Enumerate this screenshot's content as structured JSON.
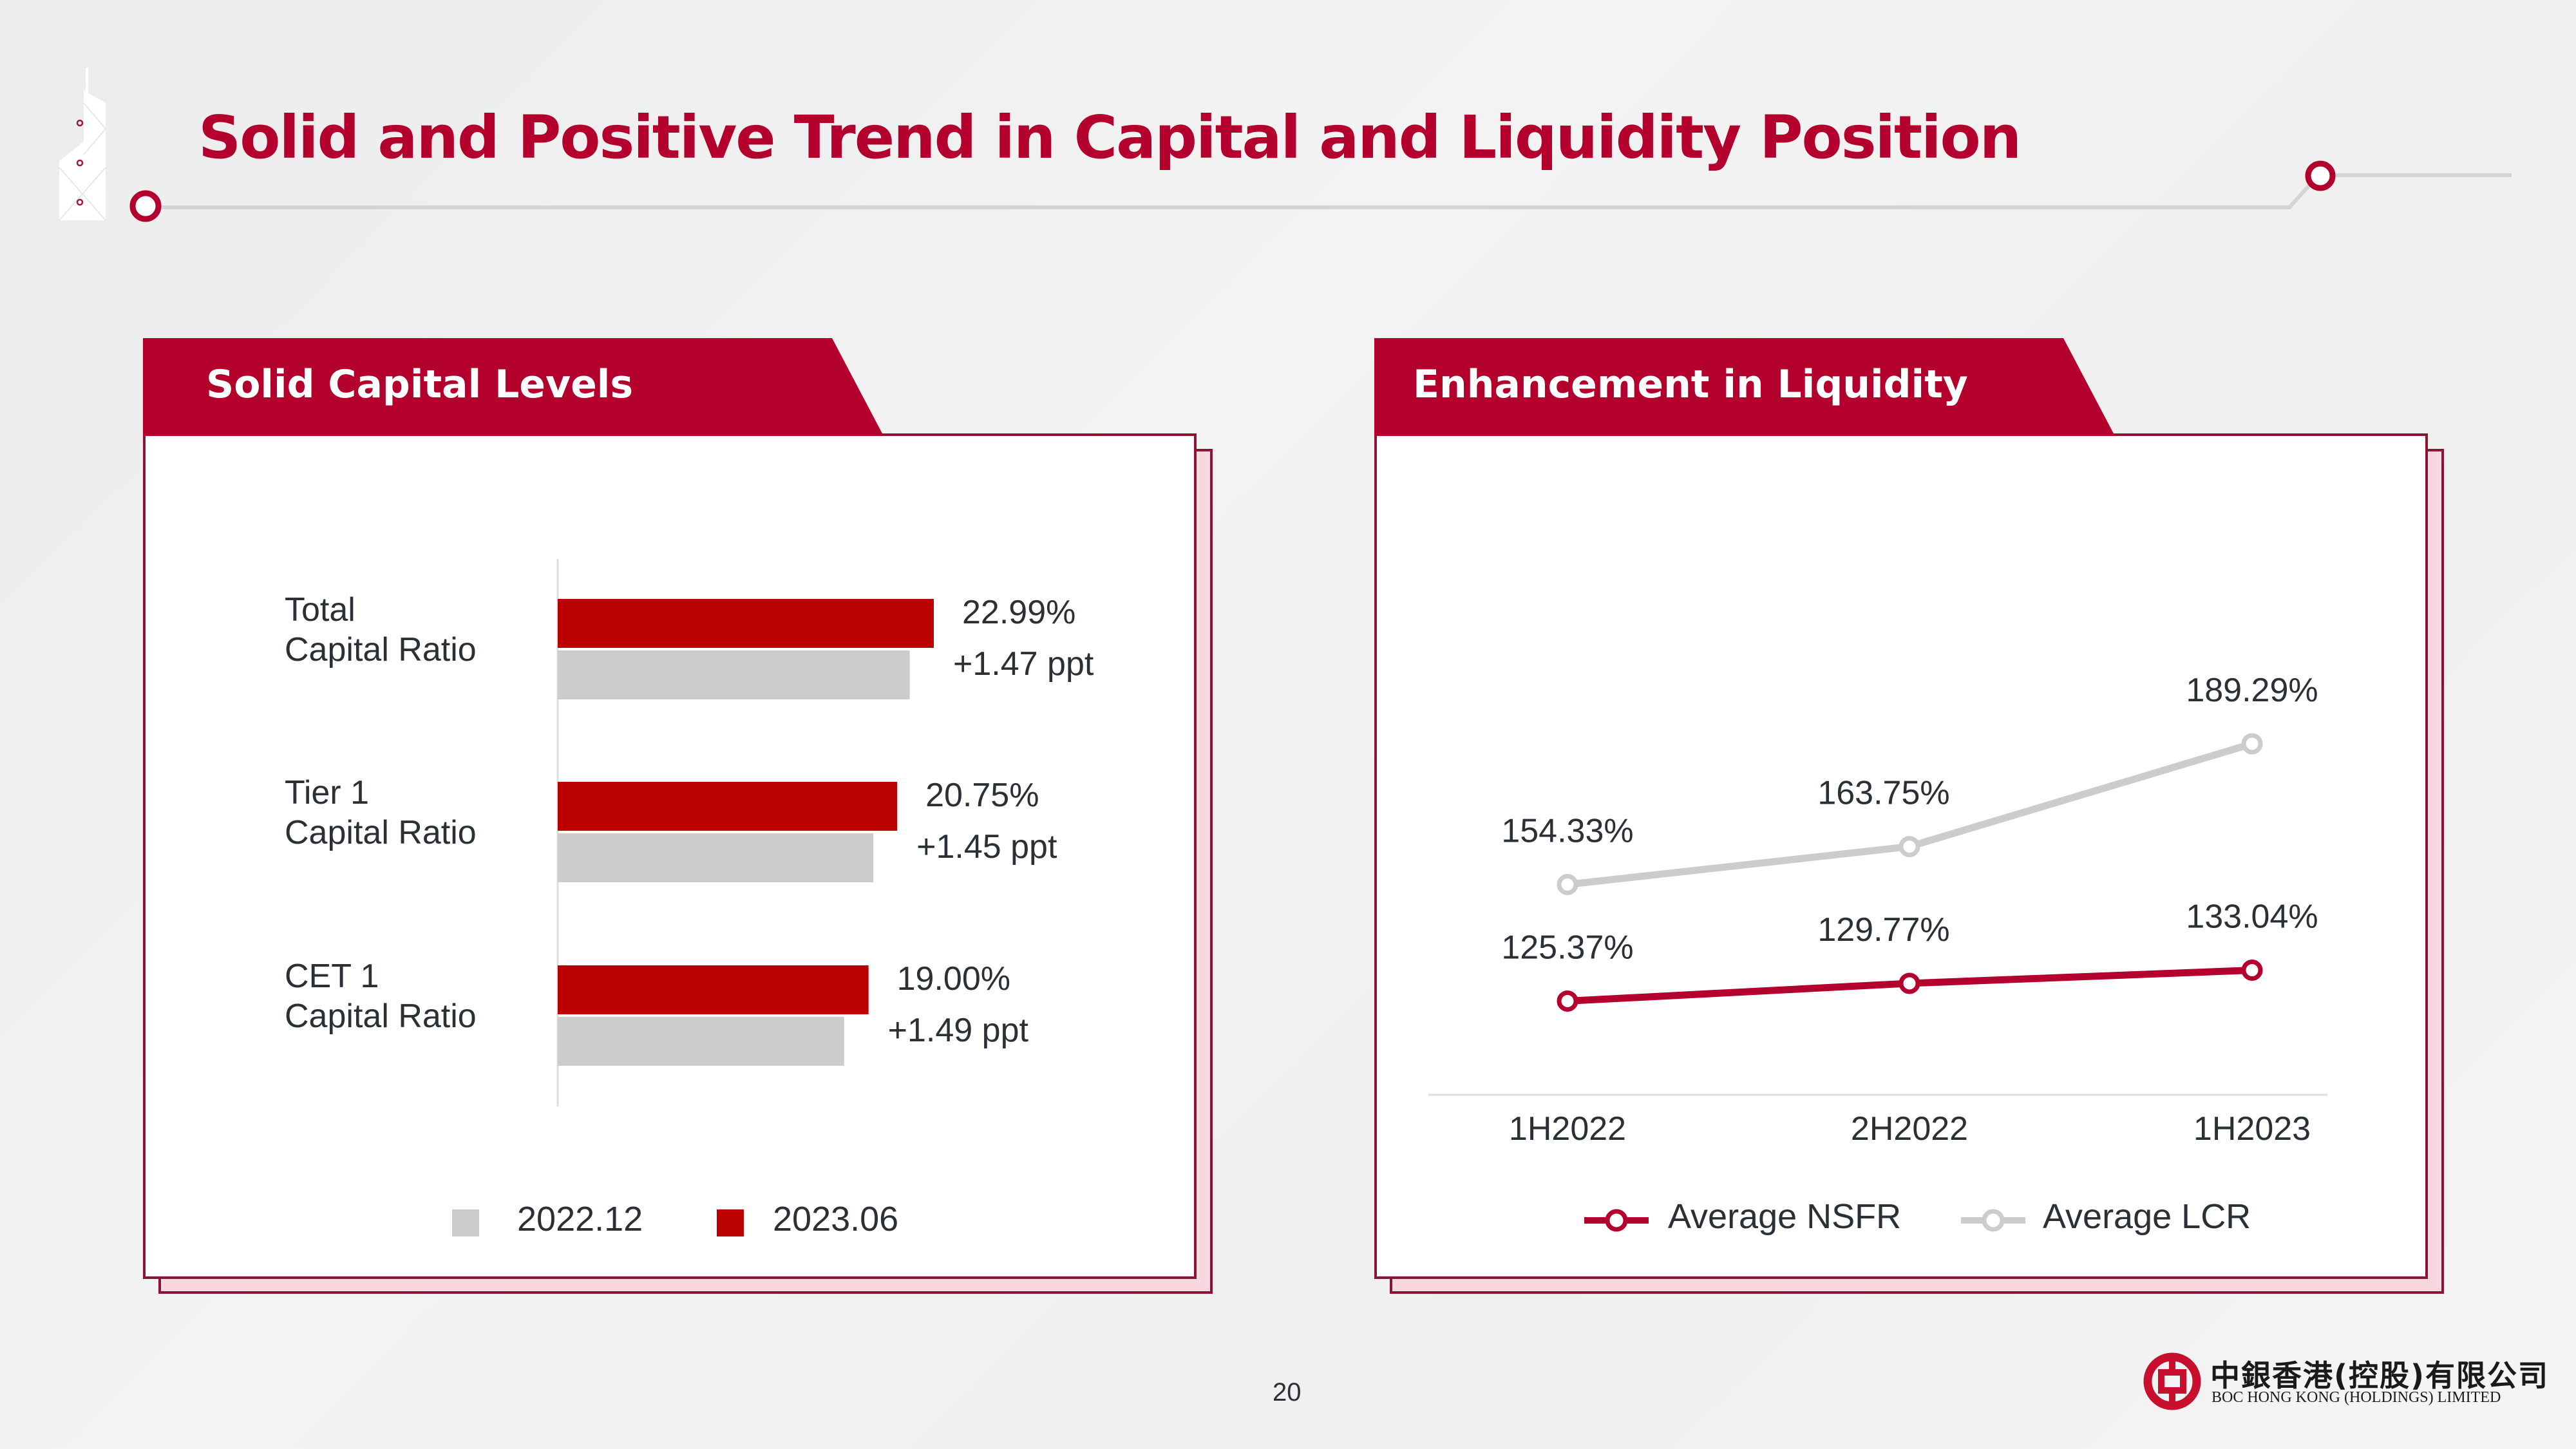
{
  "slide": {
    "title": "Solid and Positive Trend in Capital and Liquidity Position",
    "page_number": "20",
    "brand_color": "#b4002c",
    "logo": {
      "chinese_name": "中銀香港(控股)有限公司",
      "english_name": "BOC HONG KONG (HOLDINGS) LIMITED"
    }
  },
  "left_panel": {
    "header": "Solid Capital Levels"
  },
  "right_panel": {
    "header": "Enhancement in Liquidity"
  },
  "chart_data": [
    {
      "type": "bar",
      "orientation": "horizontal",
      "title": "Solid Capital Levels",
      "categories": [
        {
          "line1": "Total",
          "line2": "Capital Ratio"
        },
        {
          "line1": "Tier 1",
          "line2": "Capital Ratio"
        },
        {
          "line1": "CET 1",
          "line2": "Capital Ratio"
        }
      ],
      "series": [
        {
          "name": "2023.06",
          "color": "#bb0000",
          "values": [
            22.99,
            20.75,
            19.0
          ]
        },
        {
          "name": "2022.12",
          "color": "#cccccc",
          "values": [
            21.52,
            19.3,
            17.51
          ]
        }
      ],
      "value_labels": [
        "22.99%",
        "20.75%",
        "19.00%"
      ],
      "change_labels": [
        "+1.47 ppt",
        "+1.45 ppt",
        "+1.49 ppt"
      ],
      "legend": [
        {
          "name": "2022.12",
          "color": "#cccccc"
        },
        {
          "name": "2023.06",
          "color": "#bb0000"
        }
      ],
      "legend_position": "bottom",
      "xlim": [
        12,
        24
      ],
      "grid": false
    },
    {
      "type": "line",
      "title": "Enhancement in Liquidity",
      "x": [
        "1H2022",
        "2H2022",
        "1H2023"
      ],
      "series": [
        {
          "name": "Average NSFR",
          "color": "#b4002c",
          "values": [
            125.37,
            129.77,
            133.04
          ],
          "labels": [
            "125.37%",
            "129.77%",
            "133.04%"
          ]
        },
        {
          "name": "Average LCR",
          "color": "#cccccc",
          "values": [
            154.33,
            163.75,
            189.29
          ],
          "labels": [
            "154.33%",
            "163.75%",
            "189.29%"
          ]
        }
      ],
      "legend_position": "bottom",
      "ylim": [
        100,
        200
      ],
      "grid": false
    }
  ]
}
